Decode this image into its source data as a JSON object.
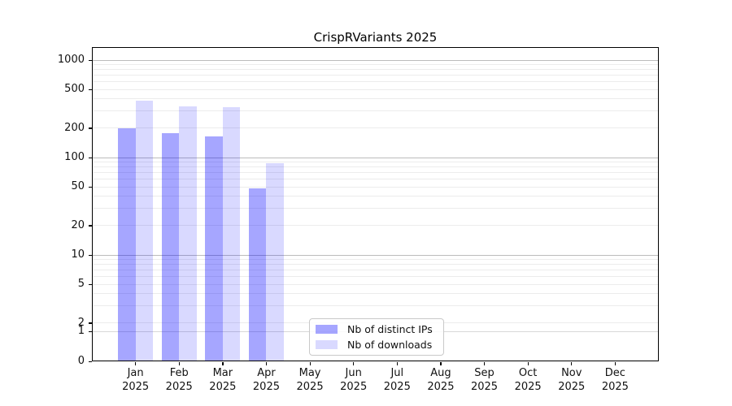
{
  "chart_data": {
    "type": "bar",
    "title": "CrispRVariants 2025",
    "year": "2025",
    "categories": [
      "Jan",
      "Feb",
      "Mar",
      "Apr",
      "May",
      "Jun",
      "Jul",
      "Aug",
      "Sep",
      "Oct",
      "Nov",
      "Dec"
    ],
    "series": [
      {
        "name": "Nb of distinct IPs",
        "color": "#a6a6ff",
        "color_rgba": "rgba(0,0,255,0.35)",
        "values": [
          200,
          178,
          166,
          48,
          null,
          null,
          null,
          null,
          null,
          null,
          null,
          null
        ]
      },
      {
        "name": "Nb of downloads",
        "color": "#d9d9ff",
        "color_rgba": "rgba(0,0,255,0.15)",
        "values": [
          383,
          335,
          327,
          88,
          null,
          null,
          null,
          null,
          null,
          null,
          null,
          null
        ]
      }
    ],
    "yticks": [
      0,
      1,
      2,
      5,
      10,
      20,
      50,
      100,
      200,
      500,
      1000
    ],
    "yscale": "log-with-zero",
    "ylim": [
      0,
      1360
    ],
    "xlabel": "",
    "ylabel": "",
    "grid": "horizontal",
    "grid_major_color": "#bcbcbc",
    "grid_minor_color": "#ececec",
    "legend_position": "lower-center",
    "legend_entries": [
      "Nb of distinct IPs",
      "Nb of downloads"
    ]
  }
}
